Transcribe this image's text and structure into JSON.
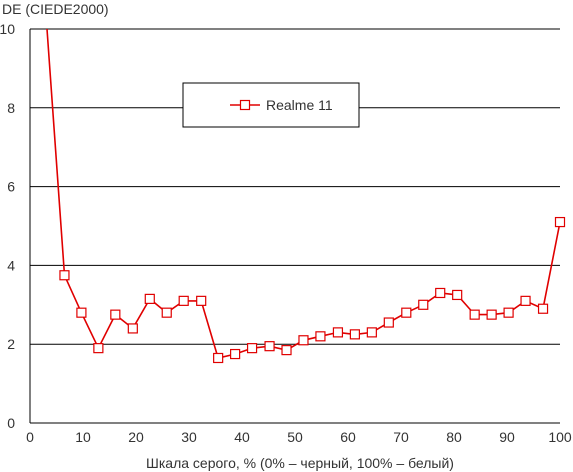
{
  "chart_data": {
    "type": "line",
    "ylabel": "DE (CIEDE2000)",
    "xlabel": "Шкала серого, % (0% – черный, 100% – белый)",
    "xlim": [
      0,
      100
    ],
    "ylim": [
      0,
      10
    ],
    "xticks": [
      0,
      10,
      20,
      30,
      40,
      50,
      60,
      70,
      80,
      90,
      100
    ],
    "yticks": [
      0,
      2,
      4,
      6,
      8,
      10
    ],
    "grid": "horizontal",
    "legend_position": "top-center",
    "series": [
      {
        "name": "Realme 11",
        "color": "#e00000",
        "marker": "hollow-square",
        "entry_line": [
          {
            "x": 3.2,
            "y": 10.0
          }
        ],
        "points": [
          {
            "x": 6.5,
            "y": 3.75
          },
          {
            "x": 9.7,
            "y": 2.8
          },
          {
            "x": 12.9,
            "y": 1.9
          },
          {
            "x": 16.1,
            "y": 2.75
          },
          {
            "x": 19.4,
            "y": 2.4
          },
          {
            "x": 22.6,
            "y": 3.15
          },
          {
            "x": 25.8,
            "y": 2.8
          },
          {
            "x": 29.0,
            "y": 3.1
          },
          {
            "x": 32.3,
            "y": 3.1
          },
          {
            "x": 35.5,
            "y": 1.65
          },
          {
            "x": 38.7,
            "y": 1.75
          },
          {
            "x": 41.9,
            "y": 1.9
          },
          {
            "x": 45.2,
            "y": 1.95
          },
          {
            "x": 48.4,
            "y": 1.85
          },
          {
            "x": 51.6,
            "y": 2.1
          },
          {
            "x": 54.8,
            "y": 2.2
          },
          {
            "x": 58.1,
            "y": 2.3
          },
          {
            "x": 61.3,
            "y": 2.25
          },
          {
            "x": 64.5,
            "y": 2.3
          },
          {
            "x": 67.7,
            "y": 2.55
          },
          {
            "x": 71.0,
            "y": 2.8
          },
          {
            "x": 74.2,
            "y": 3.0
          },
          {
            "x": 77.4,
            "y": 3.3
          },
          {
            "x": 80.6,
            "y": 3.25
          },
          {
            "x": 83.9,
            "y": 2.75
          },
          {
            "x": 87.1,
            "y": 2.75
          },
          {
            "x": 90.3,
            "y": 2.8
          },
          {
            "x": 93.5,
            "y": 3.1
          },
          {
            "x": 96.8,
            "y": 2.9
          },
          {
            "x": 100.0,
            "y": 5.1
          }
        ]
      }
    ]
  }
}
